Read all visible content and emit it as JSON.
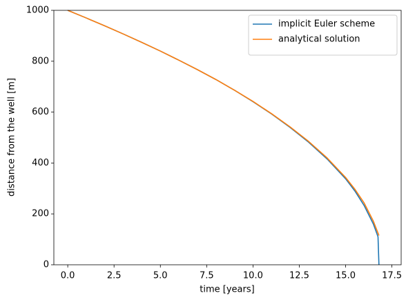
{
  "chart_data": {
    "type": "line",
    "xlabel": "time [years]",
    "ylabel": "distance from the well [m]",
    "xlim": [
      -0.75,
      18.0
    ],
    "ylim": [
      0,
      1000
    ],
    "xticks": [
      {
        "value": 0,
        "label": "0.0"
      },
      2.5,
      {
        "value": 5,
        "label": "5.0"
      },
      7.5,
      {
        "value": 10,
        "label": "10.0"
      },
      12.5,
      {
        "value": 15,
        "label": "15.0"
      },
      17.5
    ],
    "yticks": [
      0,
      200,
      400,
      600,
      800,
      1000
    ],
    "grid": false,
    "legend": "upper right",
    "series": [
      {
        "name": "implicit Euler scheme",
        "color": "#1f77b4",
        "x": [
          0,
          1,
          2,
          3,
          4,
          5,
          6,
          7,
          8,
          9,
          10,
          11,
          12,
          13,
          14,
          15,
          15.5,
          16,
          16.5,
          16.75,
          16.8
        ],
        "values": [
          1000,
          970,
          939,
          907,
          874,
          840,
          804,
          767,
          728,
          686,
          641,
          593,
          540,
          482,
          416,
          338,
          290,
          233,
          160,
          110,
          0
        ]
      },
      {
        "name": "analytical solution",
        "color": "#ff7f0e",
        "x": [
          0,
          1,
          2,
          3,
          4,
          5,
          6,
          7,
          8,
          9,
          10,
          11,
          12,
          13,
          14,
          15,
          15.5,
          16,
          16.5,
          16.8
        ],
        "values": [
          1000,
          970,
          939,
          907,
          874,
          840,
          804,
          767,
          728,
          686,
          642,
          594,
          542,
          485,
          420,
          343,
          297,
          243,
          171,
          115
        ]
      }
    ]
  }
}
